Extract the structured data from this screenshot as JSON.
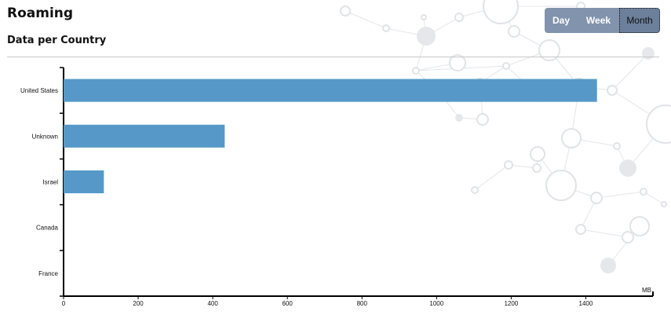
{
  "header": {
    "title": "Roaming",
    "subtitle": "Data per Country"
  },
  "period_toggle": {
    "options": [
      "Day",
      "Week",
      "Month"
    ],
    "selected": "Month"
  },
  "colors": {
    "bar": "#5699c9",
    "toggle_bg": "#8193ad",
    "toggle_selected": "#6c7f9b"
  },
  "chart_data": {
    "type": "bar",
    "orientation": "horizontal",
    "categories": [
      "United States",
      "Unknown",
      "Israel",
      "Canada",
      "France"
    ],
    "values": [
      1430,
      432,
      108,
      0,
      0
    ],
    "xlabel": "MB",
    "ylabel": "",
    "xlim": [
      0,
      1580
    ],
    "xticks": [
      0,
      200,
      400,
      600,
      800,
      1000,
      1200,
      1400
    ],
    "grid": false
  }
}
